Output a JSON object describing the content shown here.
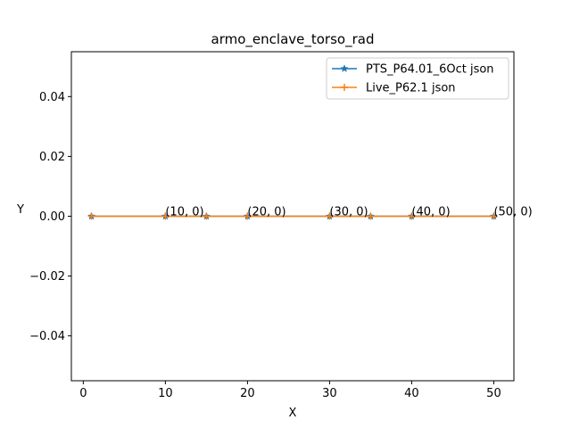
{
  "chart_data": {
    "type": "line",
    "title": "armo_enclave_torso_rad",
    "xlabel": "X",
    "ylabel": "Y",
    "xlim": [
      -1.45,
      52.45
    ],
    "ylim": [
      -0.055,
      0.055
    ],
    "xticks": [
      0,
      10,
      20,
      30,
      40,
      50
    ],
    "xtick_labels": [
      "0",
      "10",
      "20",
      "30",
      "40",
      "50"
    ],
    "yticks": [
      -0.04,
      -0.02,
      0.0,
      0.02,
      0.04
    ],
    "ytick_labels": [
      "−0.04",
      "−0.02",
      "0.00",
      "0.02",
      "0.04"
    ],
    "grid": false,
    "legend_position": "top-right",
    "series": [
      {
        "name": "PTS_P64.01_6Oct json",
        "color": "#1f77b4",
        "marker": "star",
        "x": [
          1,
          10,
          15,
          20,
          30,
          35,
          40,
          50
        ],
        "y": [
          0,
          0,
          0,
          0,
          0,
          0,
          0,
          0
        ]
      },
      {
        "name": "Live_P62.1 json",
        "color": "#ff7f0e",
        "marker": "plus",
        "x": [
          1,
          10,
          15,
          20,
          30,
          35,
          40,
          50
        ],
        "y": [
          0,
          0,
          0,
          0,
          0,
          0,
          0,
          0
        ]
      }
    ],
    "annotations": [
      {
        "text": "(10, 0)",
        "x": 10,
        "y": 0
      },
      {
        "text": "(20, 0)",
        "x": 20,
        "y": 0
      },
      {
        "text": "(30, 0)",
        "x": 30,
        "y": 0
      },
      {
        "text": "(40, 0)",
        "x": 40,
        "y": 0
      },
      {
        "text": "(50, 0)",
        "x": 50,
        "y": 0
      }
    ]
  }
}
